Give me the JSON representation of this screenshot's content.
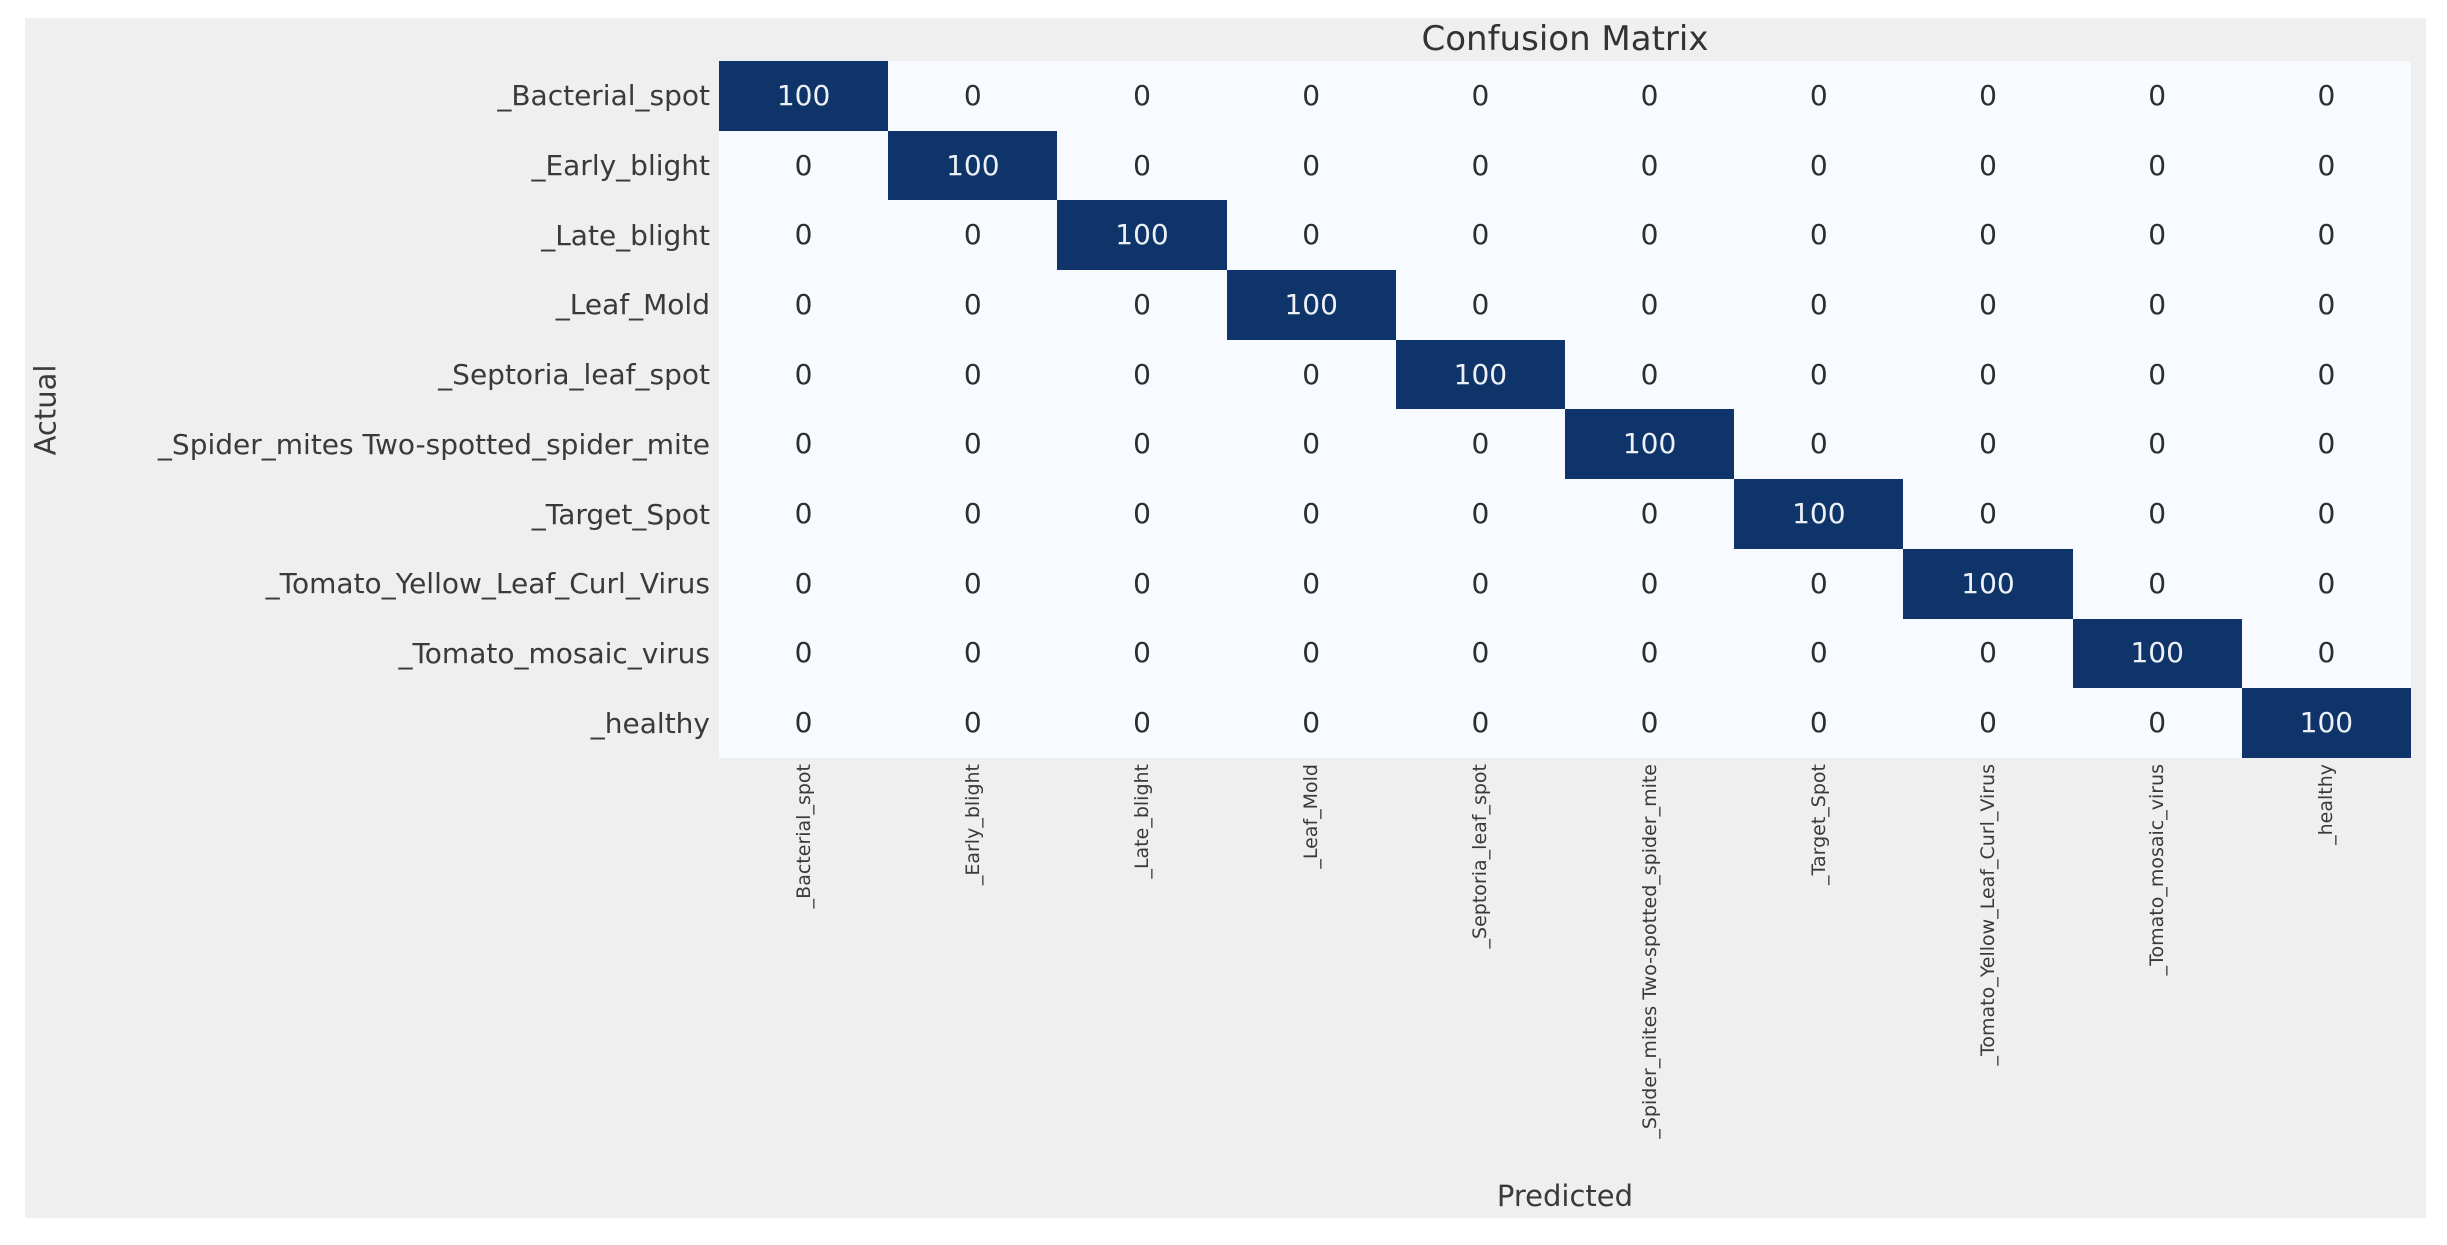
{
  "page": {
    "background": "#ffffff",
    "figure_background": "#efefef"
  },
  "chart_data": {
    "type": "heatmap",
    "title": "Confusion Matrix",
    "xlabel": "Predicted",
    "ylabel": "Actual",
    "classes": [
      "_Bacterial_spot",
      "_Early_blight",
      "_Late_blight",
      "_Leaf_Mold",
      "_Septoria_leaf_spot",
      "_Spider_mites Two-spotted_spider_mite",
      "_Target_Spot",
      "_Tomato_Yellow_Leaf_Curl_Virus",
      "_Tomato_mosaic_virus",
      "_healthy"
    ],
    "matrix": [
      [
        100,
        0,
        0,
        0,
        0,
        0,
        0,
        0,
        0,
        0
      ],
      [
        0,
        100,
        0,
        0,
        0,
        0,
        0,
        0,
        0,
        0
      ],
      [
        0,
        0,
        100,
        0,
        0,
        0,
        0,
        0,
        0,
        0
      ],
      [
        0,
        0,
        0,
        100,
        0,
        0,
        0,
        0,
        0,
        0
      ],
      [
        0,
        0,
        0,
        0,
        100,
        0,
        0,
        0,
        0,
        0
      ],
      [
        0,
        0,
        0,
        0,
        0,
        100,
        0,
        0,
        0,
        0
      ],
      [
        0,
        0,
        0,
        0,
        0,
        0,
        100,
        0,
        0,
        0
      ],
      [
        0,
        0,
        0,
        0,
        0,
        0,
        0,
        100,
        0,
        0
      ],
      [
        0,
        0,
        0,
        0,
        0,
        0,
        0,
        0,
        100,
        0
      ],
      [
        0,
        0,
        0,
        0,
        0,
        0,
        0,
        0,
        0,
        100
      ]
    ],
    "value_min": 0,
    "value_max": 100,
    "colormap": "Blues",
    "colors": {
      "max_cell": "#0e346a",
      "min_cell": "#f7fbff",
      "annot_on_dark": "#edf0f5",
      "annot_on_light": "#2e2e2e",
      "tick_label": "#3a3a3a",
      "title": "#333333"
    },
    "legend_position": "none",
    "grid": false
  }
}
